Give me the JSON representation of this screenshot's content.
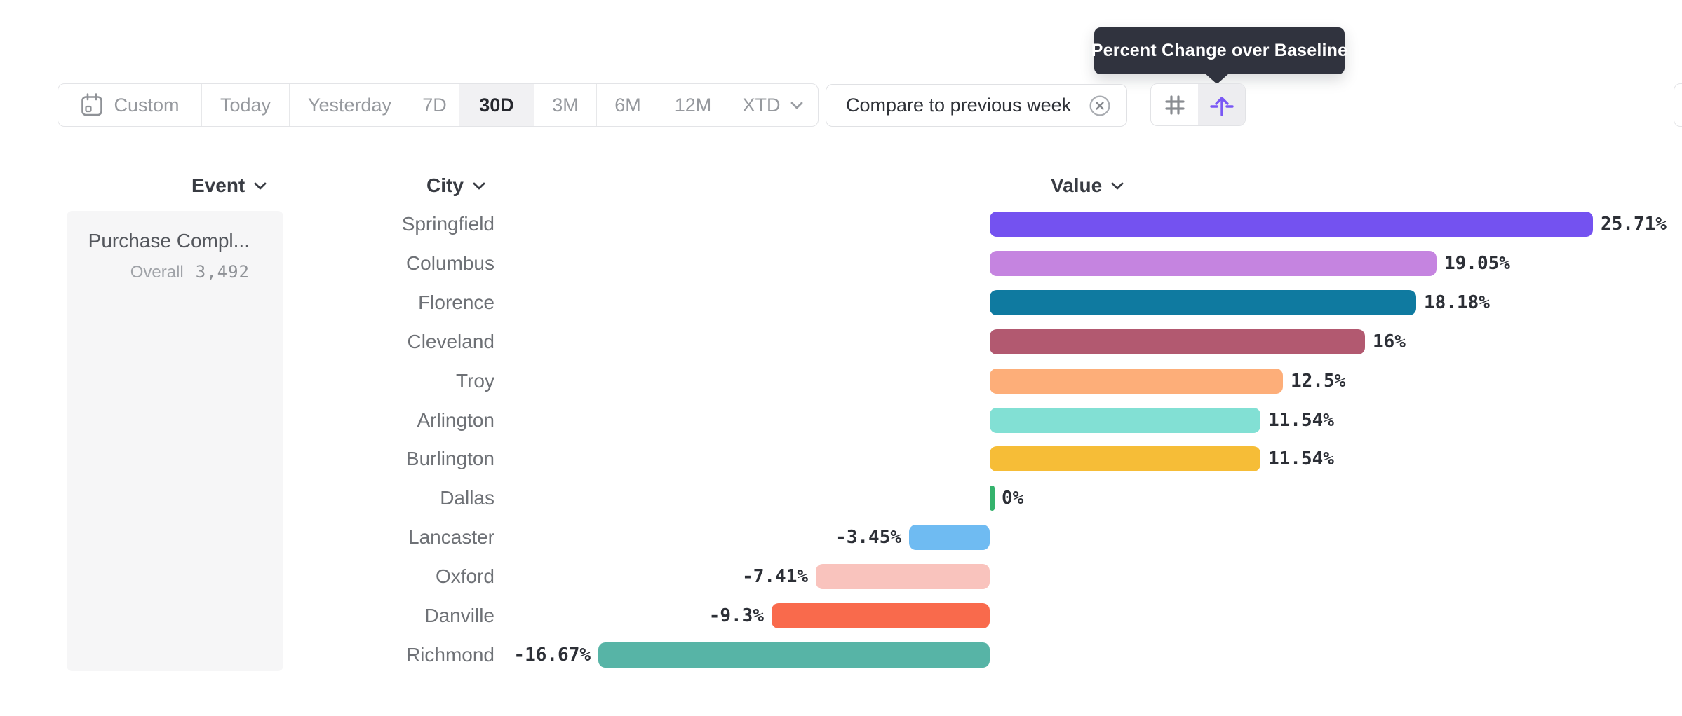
{
  "toolbar": {
    "date_ranges": [
      {
        "label": "Custom",
        "icon": "calendar",
        "selected": false
      },
      {
        "label": "Today",
        "selected": false
      },
      {
        "label": "Yesterday",
        "selected": false
      },
      {
        "label": "7D",
        "selected": false
      },
      {
        "label": "30D",
        "selected": true
      },
      {
        "label": "3M",
        "selected": false
      },
      {
        "label": "6M",
        "selected": false
      },
      {
        "label": "12M",
        "selected": false
      },
      {
        "label": "XTD",
        "chevron": true,
        "selected": false
      }
    ],
    "compare_chip": {
      "label": "Compare to previous week",
      "dismiss_icon": "x-circle-icon"
    },
    "view_toggle": {
      "options": [
        {
          "name": "absolute-numbers",
          "icon": "hash-icon",
          "selected": false
        },
        {
          "name": "percent-change-over-baseline",
          "icon": "arrow-up-from-baseline-icon",
          "selected": true
        }
      ]
    }
  },
  "tooltip": {
    "text": "Percent Change over Baseline"
  },
  "chart_data": {
    "type": "bar",
    "orientation": "horizontal",
    "columns": [
      "Event",
      "City",
      "Value"
    ],
    "event": {
      "title": "Purchase Compl...",
      "overall_label": "Overall",
      "overall_value": "3,492"
    },
    "categories": [
      "Springfield",
      "Columbus",
      "Florence",
      "Cleveland",
      "Troy",
      "Arlington",
      "Burlington",
      "Dallas",
      "Lancaster",
      "Oxford",
      "Danville",
      "Richmond"
    ],
    "values": [
      25.71,
      19.05,
      18.18,
      16,
      12.5,
      11.54,
      11.54,
      0,
      -3.45,
      -7.41,
      -9.3,
      -16.67
    ],
    "labels": [
      "25.71%",
      "19.05%",
      "18.18%",
      "16%",
      "12.5%",
      "11.54%",
      "11.54%",
      "0%",
      "-3.45%",
      "-7.41%",
      "-9.3%",
      "-16.67%"
    ],
    "bar_colors": [
      "#7452f0",
      "#c584e0",
      "#0f7aa0",
      "#b25970",
      "#fdae79",
      "#82e0d4",
      "#f6bd37",
      "#35b36d",
      "#6fbbf2",
      "#f9c3bd",
      "#f96a4c",
      "#57b4a6"
    ],
    "zero_baseline": true,
    "value_format": "percent",
    "accent_color": "#7452f0",
    "zero_tick_color": "#35b36d"
  }
}
